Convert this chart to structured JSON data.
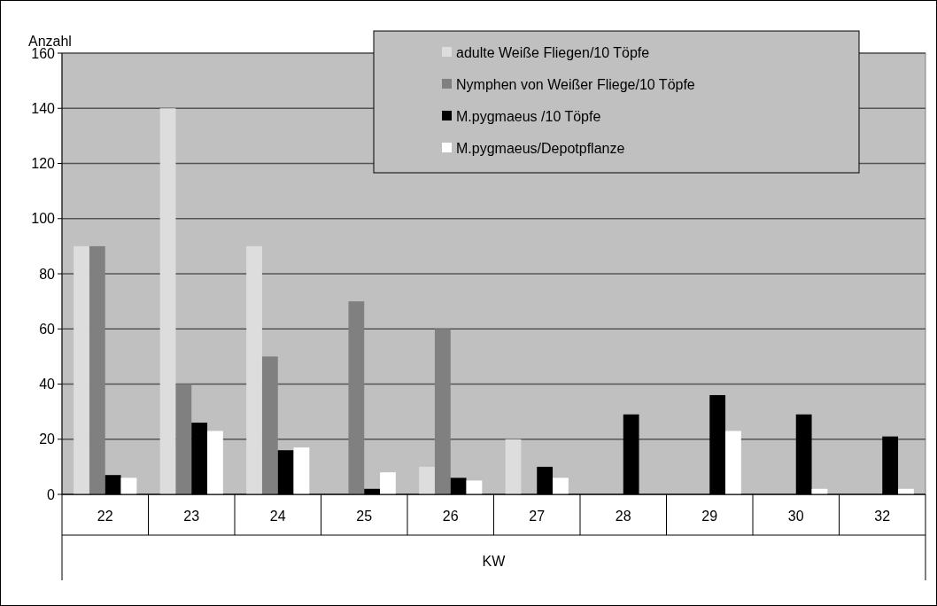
{
  "chart_data": {
    "type": "bar",
    "ylabel": "Anzahl",
    "xlabel": "KW",
    "categories": [
      "22",
      "23",
      "24",
      "25",
      "26",
      "27",
      "28",
      "29",
      "30",
      "32"
    ],
    "series": [
      {
        "name": "adulte Weiße Fliegen/10 Töpfe",
        "color": "#dddddd",
        "values": [
          90,
          140,
          90,
          0,
          10,
          20,
          0,
          0,
          0,
          0
        ]
      },
      {
        "name": "Nymphen von Weißer Fliege/10 Töpfe",
        "color": "#808080",
        "values": [
          90,
          40,
          50,
          70,
          60,
          0,
          0,
          0,
          0,
          0
        ]
      },
      {
        "name": "M.pygmaeus /10 Töpfe",
        "color": "#000000",
        "values": [
          7,
          26,
          16,
          2,
          6,
          10,
          29,
          36,
          29,
          21
        ]
      },
      {
        "name": "M.pygmaeus/Depotpflanze",
        "color": "#ffffff",
        "values": [
          6,
          23,
          17,
          8,
          5,
          6,
          0,
          23,
          2,
          2
        ]
      }
    ],
    "ylim": [
      0,
      160
    ],
    "yticks": [
      0,
      20,
      40,
      60,
      80,
      100,
      120,
      140,
      160
    ],
    "grid": "y",
    "legend": "top right"
  }
}
